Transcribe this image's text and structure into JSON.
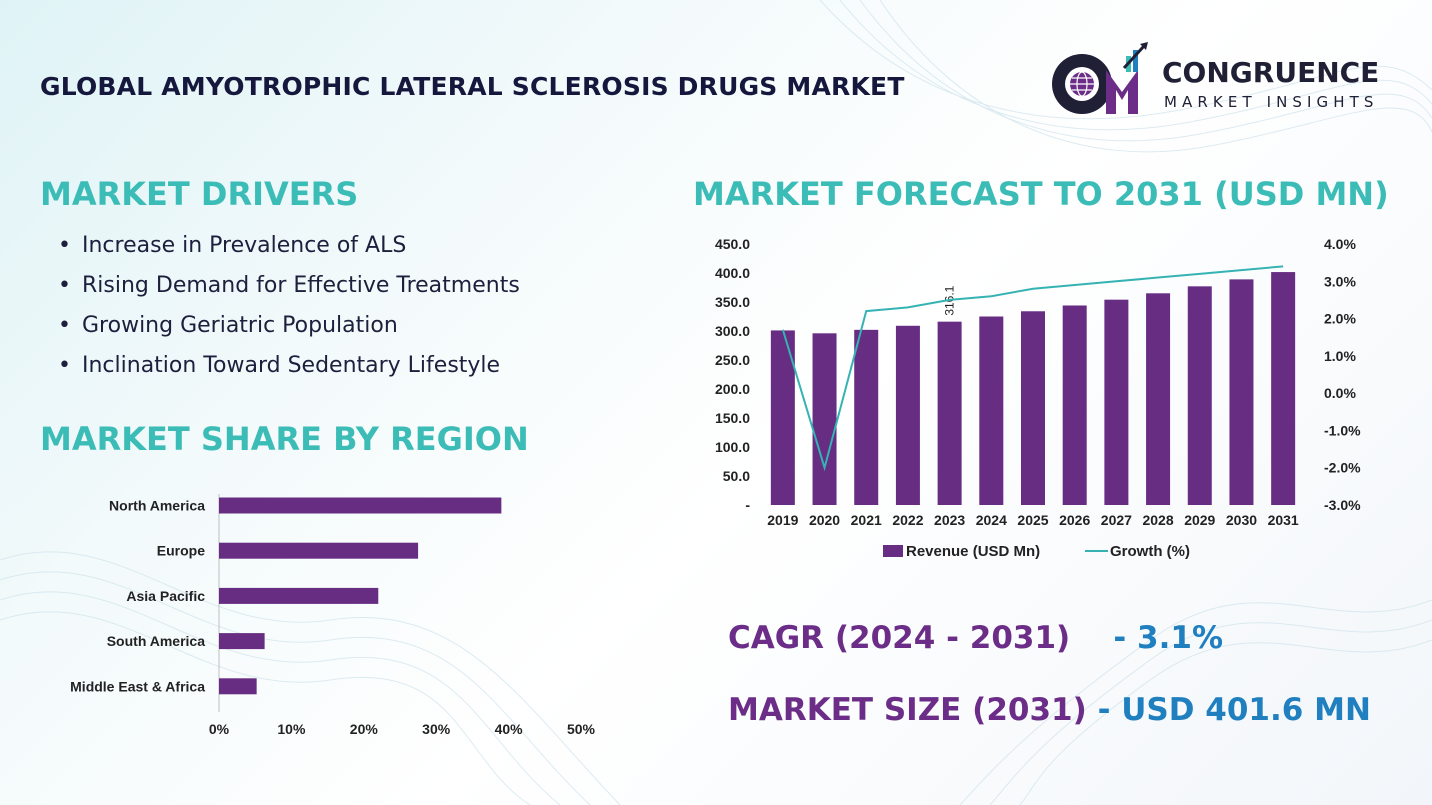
{
  "title": "GLOBAL AMYOTROPHIC LATERAL SCLEROSIS DRUGS MARKET",
  "logo": {
    "name": "CONGRUENCE",
    "subtitle": "MARKET INSIGHTS"
  },
  "drivers": {
    "heading": "MARKET DRIVERS",
    "items": [
      "Increase in Prevalence of ALS",
      "Rising Demand for Effective Treatments",
      "Growing Geriatric Population",
      "Inclination Toward Sedentary Lifestyle"
    ]
  },
  "region": {
    "heading": "MARKET SHARE BY REGION"
  },
  "forecast": {
    "heading": "MARKET FORECAST TO 2031 (USD MN)"
  },
  "kpis": {
    "cagr_label": "CAGR (2024 - 2031)",
    "cagr_value": "- 3.1%",
    "size_label": "MARKET SIZE (2031)",
    "size_value": "- USD 401.6 MN"
  },
  "colors": {
    "purple": "#662d82",
    "teal": "#3cbcb6",
    "line": "#35b3b4",
    "navy": "#15173d",
    "blue": "#1f7fbf"
  },
  "chart_data": [
    {
      "type": "bar",
      "orientation": "horizontal",
      "categories": [
        "North America",
        "Europe",
        "Asia Pacific",
        "South America",
        "Middle East & Africa"
      ],
      "values": [
        39,
        27.5,
        22,
        6.3,
        5.2
      ],
      "xlim": [
        0,
        50
      ],
      "xticks": [
        "0%",
        "10%",
        "20%",
        "30%",
        "40%",
        "50%"
      ],
      "grid": false
    },
    {
      "type": "bar",
      "categories": [
        "2019",
        "2020",
        "2021",
        "2022",
        "2023",
        "2024",
        "2025",
        "2026",
        "2027",
        "2028",
        "2029",
        "2030",
        "2031"
      ],
      "series": [
        {
          "name": "Revenue (USD Mn)",
          "type": "bar",
          "axis": "left",
          "values": [
            301,
            296,
            302,
            309,
            316.1,
            325,
            334,
            344,
            354,
            365,
            377,
            389,
            401.6
          ]
        },
        {
          "name": "Growth (%)",
          "type": "line",
          "axis": "right",
          "values": [
            1.7,
            -2.0,
            2.2,
            2.3,
            2.5,
            2.6,
            2.8,
            2.9,
            3.0,
            3.1,
            3.2,
            3.3,
            3.4
          ]
        }
      ],
      "data_labels": [
        {
          "category": "2023",
          "text": "316.1"
        }
      ],
      "ylim_left": [
        0,
        450
      ],
      "yticks_left": [
        "-",
        "50.0",
        "100.0",
        "150.0",
        "200.0",
        "250.0",
        "300.0",
        "350.0",
        "400.0",
        "450.0"
      ],
      "ylim_right": [
        -3,
        4
      ],
      "yticks_right": [
        "-3.0%",
        "-2.0%",
        "-1.0%",
        "0.0%",
        "1.0%",
        "2.0%",
        "3.0%",
        "4.0%"
      ],
      "legend": "bottom",
      "grid": false
    }
  ]
}
